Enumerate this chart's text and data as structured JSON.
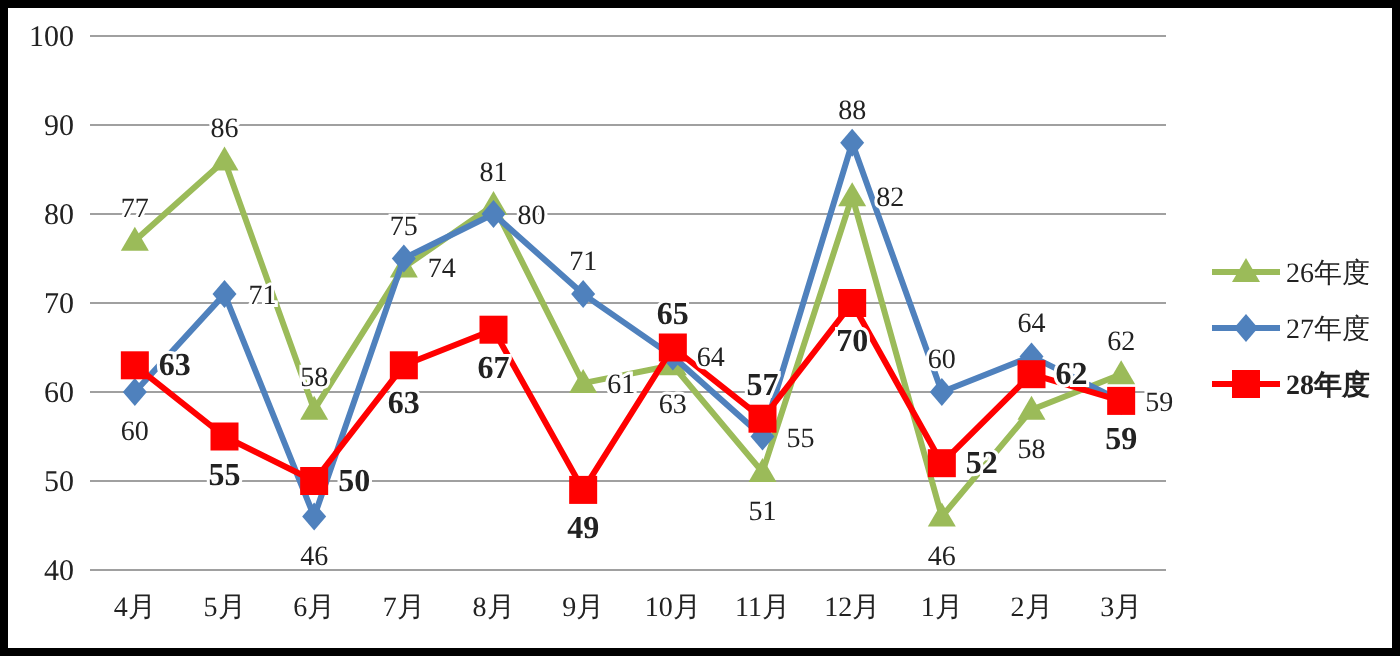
{
  "chart_data": {
    "type": "line",
    "categories": [
      "4月",
      "5月",
      "6月",
      "7月",
      "8月",
      "9月",
      "10月",
      "11月",
      "12月",
      "1月",
      "2月",
      "3月"
    ],
    "series": [
      {
        "name": "26年度",
        "color": "#9bbb59",
        "marker": "triangle",
        "values": [
          77,
          86,
          58,
          74,
          81,
          61,
          63,
          51,
          82,
          46,
          58,
          62
        ]
      },
      {
        "name": "27年度",
        "color": "#4f81bd",
        "marker": "diamond",
        "values": [
          60,
          71,
          46,
          75,
          80,
          71,
          64,
          55,
          88,
          60,
          64,
          59
        ]
      },
      {
        "name": "28年度",
        "color": "#ff0000",
        "marker": "square",
        "values": [
          63,
          55,
          50,
          63,
          67,
          49,
          65,
          57,
          70,
          52,
          62,
          59
        ]
      }
    ],
    "ylim": [
      40,
      100
    ],
    "yticks": [
      40,
      50,
      60,
      70,
      80,
      90,
      100
    ],
    "grid": "y",
    "legend": "right",
    "data_labels": true,
    "line_style": "solid"
  }
}
